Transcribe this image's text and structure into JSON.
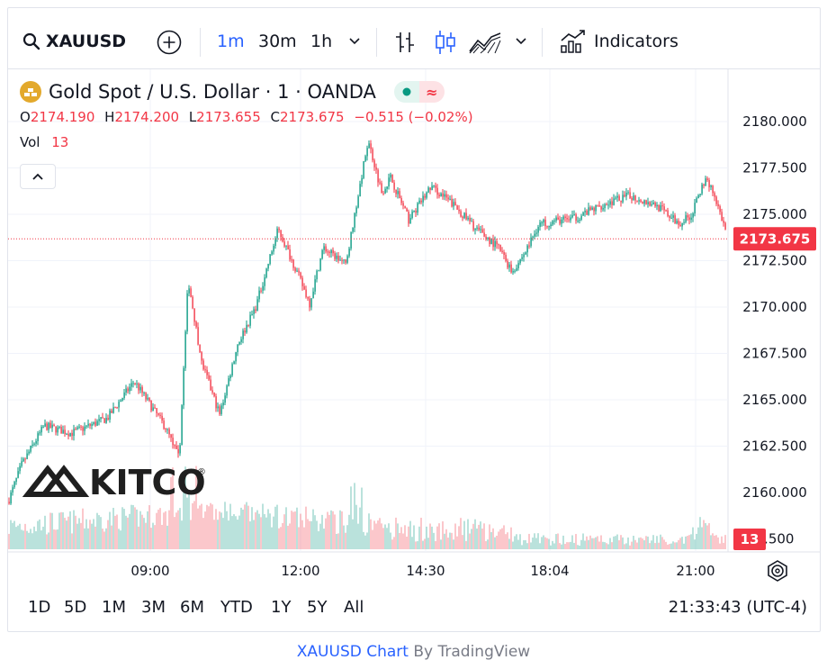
{
  "toolbar": {
    "symbol": "XAUUSD",
    "timeframes": [
      "1m",
      "30m",
      "1h"
    ],
    "active_timeframe": "1m",
    "indicators_label": "Indicators"
  },
  "legend": {
    "title": "Gold Spot / U.S. Dollar · 1 · OANDA",
    "open_label": "O",
    "open": "2174.190",
    "high_label": "H",
    "high": "2174.200",
    "low_label": "L",
    "low": "2173.655",
    "close_label": "C",
    "close": "2173.675",
    "change": "−0.515 (−0.02%)",
    "vol_label": "Vol",
    "vol": "13"
  },
  "chart_data": {
    "type": "candlestick",
    "symbol": "XAUUSD",
    "y_ticks": [
      2162.5,
      2165.0,
      2167.5,
      2170.0,
      2172.5,
      2175.0,
      2177.5,
      2180.0
    ],
    "y_tick_labels_extra": [
      "2160.000",
      "7.500"
    ],
    "ylim": [
      2157.5,
      2181.5
    ],
    "x_ticks": [
      "09:00",
      "12:00",
      "14:30",
      "18:04",
      "21:00"
    ],
    "last_price": 2173.675,
    "last_price_label": "2173.675",
    "last_volume": 13,
    "last_volume_label": "13",
    "price_path_approx": [
      [
        0,
        2159.5
      ],
      [
        15,
        2161.5
      ],
      [
        40,
        2163.6
      ],
      [
        70,
        2163.2
      ],
      [
        110,
        2164.0
      ],
      [
        140,
        2166.0
      ],
      [
        175,
        2163.5
      ],
      [
        190,
        2161.8
      ],
      [
        200,
        2171.5
      ],
      [
        215,
        2167.0
      ],
      [
        235,
        2164.2
      ],
      [
        255,
        2168.0
      ],
      [
        275,
        2170.0
      ],
      [
        300,
        2174.2
      ],
      [
        320,
        2172.0
      ],
      [
        335,
        2170.2
      ],
      [
        350,
        2173.2
      ],
      [
        375,
        2172.3
      ],
      [
        400,
        2179.0
      ],
      [
        415,
        2176.2
      ],
      [
        425,
        2177.0
      ],
      [
        445,
        2174.7
      ],
      [
        470,
        2176.5
      ],
      [
        495,
        2175.5
      ],
      [
        520,
        2174.2
      ],
      [
        545,
        2173.2
      ],
      [
        560,
        2171.9
      ],
      [
        575,
        2173.0
      ],
      [
        590,
        2174.5
      ],
      [
        630,
        2174.8
      ],
      [
        660,
        2175.5
      ],
      [
        690,
        2176.0
      ],
      [
        720,
        2175.5
      ],
      [
        745,
        2174.5
      ],
      [
        760,
        2175.0
      ],
      [
        775,
        2177.0
      ],
      [
        785,
        2176.0
      ],
      [
        800,
        2173.7
      ]
    ],
    "up_color": "#089981",
    "down_color": "#f23645"
  },
  "bottom": {
    "ranges": [
      "1D",
      "5D",
      "1M",
      "3M",
      "6M",
      "YTD",
      "1Y",
      "5Y",
      "All"
    ],
    "clock": "21:33:43 (UTC-4)"
  },
  "watermark": "KITCO",
  "footer": {
    "link": "XAUUSD Chart",
    "by": "By TradingView"
  },
  "colors": {
    "accent": "#2962ff",
    "up": "#089981",
    "down": "#f23645",
    "border": "#e0e3eb"
  }
}
